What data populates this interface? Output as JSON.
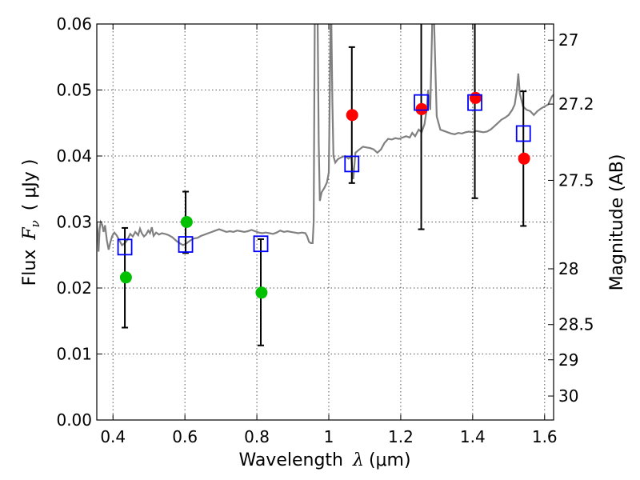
{
  "chart_data": {
    "type": "scatter",
    "xlabel": {
      "text": "Wavelength",
      "symbol": "λ",
      "unit": "(μm)"
    },
    "ylabel": {
      "text": "Flux",
      "symbol": "F",
      "subscript": "ν",
      "unit": "( μJy )"
    },
    "y2label": "Magnitude (AB)",
    "xlim": [
      0.355,
      1.625
    ],
    "ylim": [
      0.0,
      0.06
    ],
    "xticks": [
      {
        "value": 0.4,
        "label": "0.4"
      },
      {
        "value": 0.6,
        "label": "0.6"
      },
      {
        "value": 0.8,
        "label": "0.8"
      },
      {
        "value": 1.0,
        "label": "1"
      },
      {
        "value": 1.2,
        "label": "1.2"
      },
      {
        "value": 1.4,
        "label": "1.4"
      },
      {
        "value": 1.6,
        "label": "1.6"
      }
    ],
    "yticks": [
      {
        "value": 0.0,
        "label": "0.00"
      },
      {
        "value": 0.01,
        "label": "0.01"
      },
      {
        "value": 0.02,
        "label": "0.02"
      },
      {
        "value": 0.03,
        "label": "0.03"
      },
      {
        "value": 0.04,
        "label": "0.04"
      },
      {
        "value": 0.05,
        "label": "0.05"
      },
      {
        "value": 0.06,
        "label": "0.06"
      }
    ],
    "y2ticks": [
      {
        "value": 27,
        "label": "27"
      },
      {
        "value": 27.2,
        "label": "27.2"
      },
      {
        "value": 27.5,
        "label": "27.5"
      },
      {
        "value": 28,
        "label": "28"
      },
      {
        "value": 28.5,
        "label": "28.5"
      },
      {
        "value": 29,
        "label": "29"
      },
      {
        "value": 30,
        "label": "30"
      }
    ],
    "grid": true,
    "model_spectrum": {
      "color": "#808080",
      "points": [
        [
          0.355,
          0.03
        ],
        [
          0.358,
          0.028
        ],
        [
          0.36,
          0.0255
        ],
        [
          0.363,
          0.029
        ],
        [
          0.366,
          0.03
        ],
        [
          0.37,
          0.0296
        ],
        [
          0.374,
          0.0285
        ],
        [
          0.378,
          0.0295
        ],
        [
          0.383,
          0.0272
        ],
        [
          0.388,
          0.0258
        ],
        [
          0.393,
          0.027
        ],
        [
          0.398,
          0.0279
        ],
        [
          0.404,
          0.0284
        ],
        [
          0.41,
          0.028
        ],
        [
          0.418,
          0.0272
        ],
        [
          0.425,
          0.0265
        ],
        [
          0.433,
          0.0268
        ],
        [
          0.44,
          0.0273
        ],
        [
          0.448,
          0.0282
        ],
        [
          0.455,
          0.0278
        ],
        [
          0.462,
          0.0285
        ],
        [
          0.47,
          0.028
        ],
        [
          0.475,
          0.029
        ],
        [
          0.48,
          0.0283
        ],
        [
          0.486,
          0.0278
        ],
        [
          0.492,
          0.0281
        ],
        [
          0.498,
          0.0287
        ],
        [
          0.503,
          0.0283
        ],
        [
          0.508,
          0.0292
        ],
        [
          0.513,
          0.0279
        ],
        [
          0.52,
          0.0284
        ],
        [
          0.528,
          0.0281
        ],
        [
          0.536,
          0.0283
        ],
        [
          0.545,
          0.0282
        ],
        [
          0.555,
          0.028
        ],
        [
          0.565,
          0.0277
        ],
        [
          0.575,
          0.0272
        ],
        [
          0.585,
          0.0268
        ],
        [
          0.595,
          0.0265
        ],
        [
          0.605,
          0.0268
        ],
        [
          0.615,
          0.0272
        ],
        [
          0.625,
          0.0275
        ],
        [
          0.635,
          0.0276
        ],
        [
          0.645,
          0.0279
        ],
        [
          0.655,
          0.0281
        ],
        [
          0.665,
          0.0283
        ],
        [
          0.675,
          0.0285
        ],
        [
          0.685,
          0.0287
        ],
        [
          0.695,
          0.0289
        ],
        [
          0.705,
          0.0287
        ],
        [
          0.715,
          0.0285
        ],
        [
          0.725,
          0.0286
        ],
        [
          0.735,
          0.0285
        ],
        [
          0.745,
          0.0287
        ],
        [
          0.755,
          0.0286
        ],
        [
          0.765,
          0.0285
        ],
        [
          0.775,
          0.0286
        ],
        [
          0.785,
          0.0288
        ],
        [
          0.795,
          0.0286
        ],
        [
          0.805,
          0.0284
        ],
        [
          0.815,
          0.0283
        ],
        [
          0.825,
          0.0284
        ],
        [
          0.835,
          0.0283
        ],
        [
          0.845,
          0.0282
        ],
        [
          0.855,
          0.0284
        ],
        [
          0.865,
          0.0287
        ],
        [
          0.875,
          0.0285
        ],
        [
          0.885,
          0.0286
        ],
        [
          0.895,
          0.0285
        ],
        [
          0.905,
          0.0284
        ],
        [
          0.915,
          0.0283
        ],
        [
          0.925,
          0.0284
        ],
        [
          0.935,
          0.0283
        ],
        [
          0.94,
          0.0278
        ],
        [
          0.945,
          0.027
        ],
        [
          0.95,
          0.0268
        ],
        [
          0.955,
          0.0268
        ],
        [
          0.958,
          0.03
        ],
        [
          0.961,
          0.062
        ],
        [
          0.965,
          0.066
        ],
        [
          0.969,
          0.06
        ],
        [
          0.972,
          0.042
        ],
        [
          0.975,
          0.0332
        ],
        [
          0.98,
          0.0345
        ],
        [
          0.988,
          0.0352
        ],
        [
          0.995,
          0.036
        ],
        [
          1.0,
          0.0375
        ],
        [
          1.003,
          0.05
        ],
        [
          1.006,
          0.065
        ],
        [
          1.01,
          0.048
        ],
        [
          1.013,
          0.04
        ],
        [
          1.018,
          0.039
        ],
        [
          1.025,
          0.0395
        ],
        [
          1.035,
          0.0398
        ],
        [
          1.045,
          0.04
        ],
        [
          1.055,
          0.0396
        ],
        [
          1.062,
          0.04
        ],
        [
          1.068,
          0.0365
        ],
        [
          1.074,
          0.0405
        ],
        [
          1.085,
          0.041
        ],
        [
          1.095,
          0.0414
        ],
        [
          1.105,
          0.0413
        ],
        [
          1.115,
          0.0412
        ],
        [
          1.125,
          0.041
        ],
        [
          1.135,
          0.0405
        ],
        [
          1.145,
          0.041
        ],
        [
          1.155,
          0.042
        ],
        [
          1.165,
          0.0426
        ],
        [
          1.175,
          0.0425
        ],
        [
          1.185,
          0.0427
        ],
        [
          1.195,
          0.0426
        ],
        [
          1.205,
          0.0428
        ],
        [
          1.215,
          0.043
        ],
        [
          1.225,
          0.0428
        ],
        [
          1.232,
          0.0435
        ],
        [
          1.24,
          0.043
        ],
        [
          1.25,
          0.044
        ],
        [
          1.258,
          0.0436
        ],
        [
          1.266,
          0.0448
        ],
        [
          1.272,
          0.047
        ],
        [
          1.276,
          0.05
        ],
        [
          1.282,
          0.047
        ],
        [
          1.29,
          0.066
        ],
        [
          1.295,
          0.056
        ],
        [
          1.3,
          0.046
        ],
        [
          1.31,
          0.044
        ],
        [
          1.32,
          0.0438
        ],
        [
          1.33,
          0.0436
        ],
        [
          1.34,
          0.0434
        ],
        [
          1.35,
          0.0433
        ],
        [
          1.36,
          0.0435
        ],
        [
          1.37,
          0.0434
        ],
        [
          1.38,
          0.0436
        ],
        [
          1.39,
          0.0437
        ],
        [
          1.4,
          0.0436
        ],
        [
          1.41,
          0.0438
        ],
        [
          1.42,
          0.0437
        ],
        [
          1.43,
          0.0436
        ],
        [
          1.44,
          0.0437
        ],
        [
          1.45,
          0.044
        ],
        [
          1.46,
          0.0445
        ],
        [
          1.47,
          0.045
        ],
        [
          1.48,
          0.0455
        ],
        [
          1.49,
          0.0458
        ],
        [
          1.5,
          0.0462
        ],
        [
          1.51,
          0.047
        ],
        [
          1.517,
          0.0478
        ],
        [
          1.523,
          0.05
        ],
        [
          1.527,
          0.0525
        ],
        [
          1.531,
          0.0495
        ],
        [
          1.54,
          0.0475
        ],
        [
          1.55,
          0.047
        ],
        [
          1.56,
          0.0468
        ],
        [
          1.57,
          0.0462
        ],
        [
          1.58,
          0.0468
        ],
        [
          1.59,
          0.0472
        ],
        [
          1.6,
          0.0475
        ],
        [
          1.61,
          0.0478
        ],
        [
          1.62,
          0.049
        ],
        [
          1.625,
          0.0493
        ]
      ]
    },
    "series": [
      {
        "marker": "circle",
        "color": "#00c000",
        "points": [
          {
            "x": 0.436,
            "y": 0.0216
          },
          {
            "x": 0.605,
            "y": 0.03
          },
          {
            "x": 0.813,
            "y": 0.0193
          }
        ]
      },
      {
        "marker": "circle",
        "color": "#ff0000",
        "points": [
          {
            "x": 1.065,
            "y": 0.0462
          },
          {
            "x": 1.258,
            "y": 0.0471
          },
          {
            "x": 1.408,
            "y": 0.0488
          },
          {
            "x": 1.543,
            "y": 0.0396
          }
        ]
      },
      {
        "marker": "open-square",
        "color": "#0000ff",
        "points": [
          {
            "x": 0.433,
            "y": 0.0262,
            "err_low": 0.014,
            "err_high": 0.0291
          },
          {
            "x": 0.602,
            "y": 0.0266,
            "err_low": 0.0253,
            "err_high": 0.0346
          },
          {
            "x": 0.811,
            "y": 0.0267,
            "err_low": 0.0113,
            "err_high": 0.0274
          },
          {
            "x": 1.064,
            "y": 0.0388,
            "err_low": 0.0359,
            "err_high": 0.0565
          },
          {
            "x": 1.257,
            "y": 0.0481,
            "err_low": 0.0289,
            "err_high": 0.062
          },
          {
            "x": 1.406,
            "y": 0.0481,
            "err_low": 0.0336,
            "err_high": 0.062
          },
          {
            "x": 1.541,
            "y": 0.0434,
            "err_low": 0.0294,
            "err_high": 0.0498
          }
        ]
      }
    ]
  }
}
